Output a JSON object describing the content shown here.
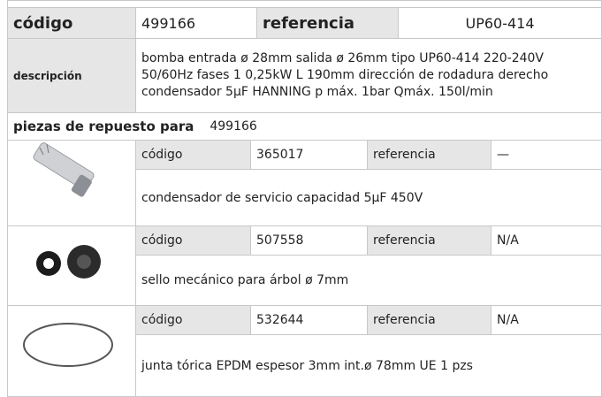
{
  "header": {
    "code_label": "código",
    "code": "499166",
    "ref_label": "referencia",
    "ref": "UP60-414"
  },
  "description": {
    "label": "descripción",
    "lines": [
      "bomba  entrada ø 28mm salida  ø  26mm tipo UP60-414 220-240V",
      "50/60Hz fases 1 0,25kW L 190mm dirección de rodadura  derecho",
      "condensador 5µF HANNING p máx. 1bar Qmáx. 150l/min"
    ]
  },
  "spare_parts": {
    "label": "piezas de repuesto para",
    "code": "499166"
  },
  "parts": [
    {
      "code_label": "código",
      "code": "365017",
      "ref_label": "referencia",
      "ref": "—",
      "description": "condensador de servicio capacidad 5µF 450V"
    },
    {
      "code_label": "código",
      "code": "507558",
      "ref_label": "referencia",
      "ref": "N/A",
      "description": "sello mecánico para árbol ø 7mm"
    },
    {
      "code_label": "código",
      "code": "532644",
      "ref_label": "referencia",
      "ref": "N/A",
      "description": "junta tórica EPDM espesor  3mm int.ø 78mm UE 1 pzs"
    }
  ]
}
